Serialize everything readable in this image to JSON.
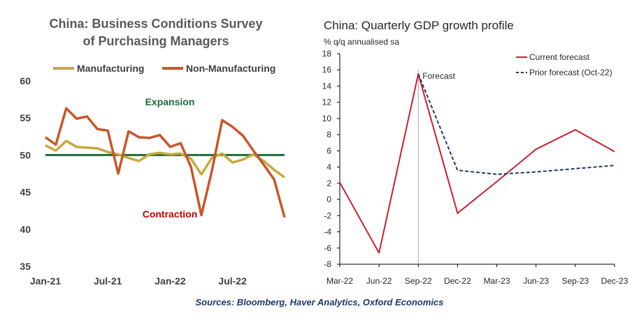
{
  "source_note": "Sources: Bloomberg, Haver Analytics, Oxford Economics",
  "colors": {
    "manufacturing": "#c9a83c",
    "non_manufacturing": "#c8562b",
    "threshold": "#1b6b3a",
    "expansion_text": "#1b6b3a",
    "contraction_text": "#c00000",
    "current_forecast": "#c8222b",
    "prior_forecast": "#1f3864"
  },
  "chart_data": [
    {
      "type": "line",
      "title_line1": "China:  Business  Conditions  Survey",
      "title_line2": "of  Purchasing  Managers",
      "categories": [
        "Jan-21",
        "Feb-21",
        "Mar-21",
        "Apr-21",
        "May-21",
        "Jun-21",
        "Jul-21",
        "Aug-21",
        "Sep-21",
        "Oct-21",
        "Nov-21",
        "Dec-21",
        "Jan-22",
        "Feb-22",
        "Mar-22",
        "Apr-22",
        "May-22",
        "Jun-22",
        "Jul-22",
        "Aug-22",
        "Sep-22",
        "Oct-22",
        "Nov-22",
        "Dec-22"
      ],
      "x_tick_labels": [
        {
          "label": "Jan-21",
          "index": 0
        },
        {
          "label": "Jul-21",
          "index": 6
        },
        {
          "label": "Jan-22",
          "index": 12
        },
        {
          "label": "Jul-22",
          "index": 18
        }
      ],
      "series": [
        {
          "name": "Manufacturing",
          "values": [
            51.3,
            50.6,
            51.9,
            51.1,
            51.0,
            50.9,
            50.4,
            50.1,
            49.6,
            49.2,
            50.1,
            50.3,
            50.1,
            50.2,
            49.5,
            47.4,
            49.6,
            50.2,
            49.0,
            49.4,
            50.1,
            49.2,
            48.0,
            47.0
          ]
        },
        {
          "name": "Non-Manufacturing",
          "values": [
            52.4,
            51.4,
            56.3,
            54.9,
            55.2,
            53.5,
            53.3,
            47.5,
            53.2,
            52.4,
            52.3,
            52.7,
            51.1,
            51.6,
            48.4,
            41.9,
            47.8,
            54.7,
            53.8,
            52.6,
            50.6,
            48.7,
            46.7,
            41.6
          ]
        }
      ],
      "threshold": 50,
      "ylim": [
        35,
        60
      ],
      "yticks": [
        35,
        40,
        45,
        50,
        55,
        60
      ],
      "annotations": {
        "expansion": "Expansion",
        "contraction": "Contraction"
      },
      "legend": "top"
    },
    {
      "type": "line",
      "title": "China: Quarterly GDP growth profile",
      "ylabel": "% q/q annualised sa",
      "categories": [
        "Mar-22",
        "Jun-22",
        "Sep-22",
        "Dec-22",
        "Mar-23",
        "Jun-23",
        "Sep-23",
        "Dec-23"
      ],
      "series": [
        {
          "name": "Current forecast",
          "values": [
            2.1,
            -6.6,
            15.5,
            -1.7,
            2.2,
            6.2,
            8.6,
            5.9
          ]
        },
        {
          "name": "Prior forecast (Oct-22)",
          "values": [
            null,
            null,
            15.5,
            3.6,
            3.1,
            3.4,
            3.8,
            4.2
          ]
        }
      ],
      "ylim": [
        -8,
        18
      ],
      "yticks": [
        -8,
        -6,
        -4,
        -2,
        0,
        2,
        4,
        6,
        8,
        10,
        12,
        14,
        16,
        18
      ],
      "annotation": {
        "label": "Forecast",
        "category": "Sep-22"
      },
      "legend": "top-right"
    }
  ]
}
